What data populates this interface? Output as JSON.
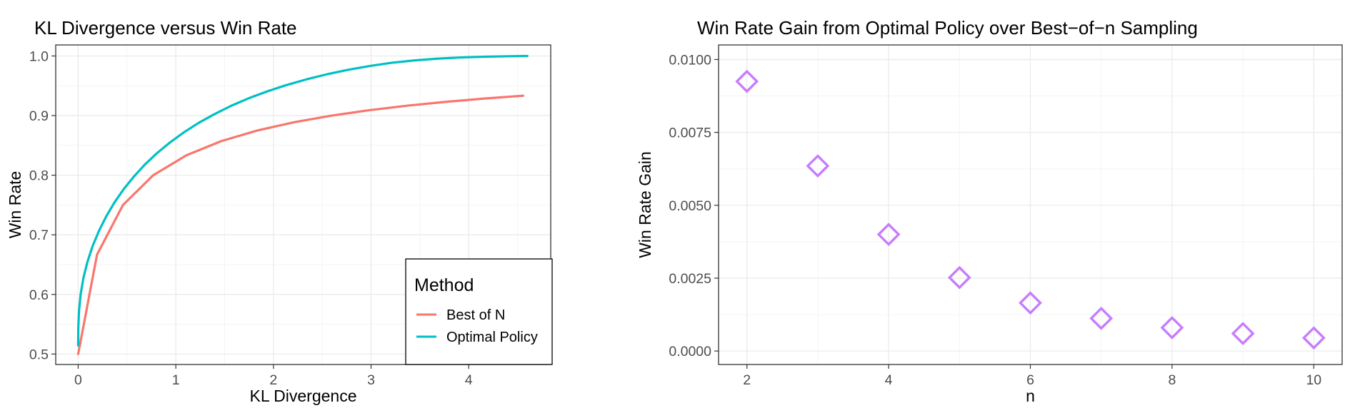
{
  "chart_data": [
    {
      "type": "line",
      "title": "KL Divergence versus Win Rate",
      "xlabel": "KL Divergence",
      "ylabel": "Win Rate",
      "xlim": [
        -0.23,
        4.84
      ],
      "ylim": [
        0.4825,
        1.0185
      ],
      "x_ticks": [
        0,
        1,
        2,
        3,
        4
      ],
      "x_tick_labels": [
        "0",
        "1",
        "2",
        "3",
        "4"
      ],
      "y_ticks": [
        0.5,
        0.6,
        0.7,
        0.8,
        0.9,
        1.0
      ],
      "y_tick_labels": [
        "0.5",
        "0.6",
        "0.7",
        "0.8",
        "0.9",
        "1.0"
      ],
      "grid": true,
      "legend": {
        "title": "Method",
        "position": "bottom-right"
      },
      "series": [
        {
          "name": "Best of N",
          "color": "#F8766D",
          "x": [
            0,
            0.193,
            0.459,
            0.769,
            1.108,
            1.465,
            1.835,
            2.214,
            2.597,
            2.985,
            3.376,
            3.768,
            4.163,
            4.558
          ],
          "y": [
            0.5,
            0.6667,
            0.75,
            0.8,
            0.8333,
            0.8571,
            0.875,
            0.8889,
            0.9,
            0.9091,
            0.9167,
            0.9231,
            0.9286,
            0.9333
          ]
        },
        {
          "name": "Optimal Policy",
          "color": "#00BFC4",
          "x": [
            0,
            0.0014,
            0.0083,
            0.0252,
            0.0544,
            0.0947,
            0.1477,
            0.2113,
            0.2862,
            0.3708,
            0.4658,
            0.5696,
            0.6842,
            0.8075,
            0.9414,
            1.0837,
            1.2366,
            1.3974,
            1.5683,
            1.7465,
            1.9345,
            2.129,
            2.3322,
            2.5411,
            2.7577,
            2.9792,
            3.2076,
            3.4397,
            3.6779,
            3.9192,
            4.1659,
            4.4153,
            4.6004
          ],
          "y": [
            0.5145,
            0.5435,
            0.5715,
            0.6,
            0.628,
            0.6545,
            0.681,
            0.706,
            0.7305,
            0.754,
            0.7765,
            0.7975,
            0.818,
            0.837,
            0.855,
            0.872,
            0.888,
            0.9025,
            0.9165,
            0.929,
            0.9405,
            0.951,
            0.9605,
            0.969,
            0.9765,
            0.983,
            0.9885,
            0.9925,
            0.9955,
            0.9975,
            0.9988,
            0.9996,
            1.0
          ]
        }
      ]
    },
    {
      "type": "scatter",
      "title": "Win Rate Gain from Optimal Policy over Best−of−n Sampling",
      "xlabel": "n",
      "ylabel": "Win Rate Gain",
      "xlim": [
        1.6,
        10.4
      ],
      "ylim": [
        -0.000462,
        0.0105
      ],
      "x_ticks": [
        2,
        4,
        6,
        8,
        10
      ],
      "x_tick_labels": [
        "2",
        "4",
        "6",
        "8",
        "10"
      ],
      "y_ticks": [
        0,
        0.0025,
        0.005,
        0.0075,
        0.01
      ],
      "y_tick_labels": [
        "0.0000",
        "0.0025",
        "0.0050",
        "0.0075",
        "0.0100"
      ],
      "grid": true,
      "marker": "diamond",
      "color": "#C77CFF",
      "x": [
        2,
        3,
        4,
        5,
        6,
        7,
        8,
        9,
        10
      ],
      "y": [
        0.00925,
        0.00635,
        0.004,
        0.00252,
        0.00165,
        0.00112,
        0.0008,
        0.0006,
        0.00045
      ]
    }
  ]
}
